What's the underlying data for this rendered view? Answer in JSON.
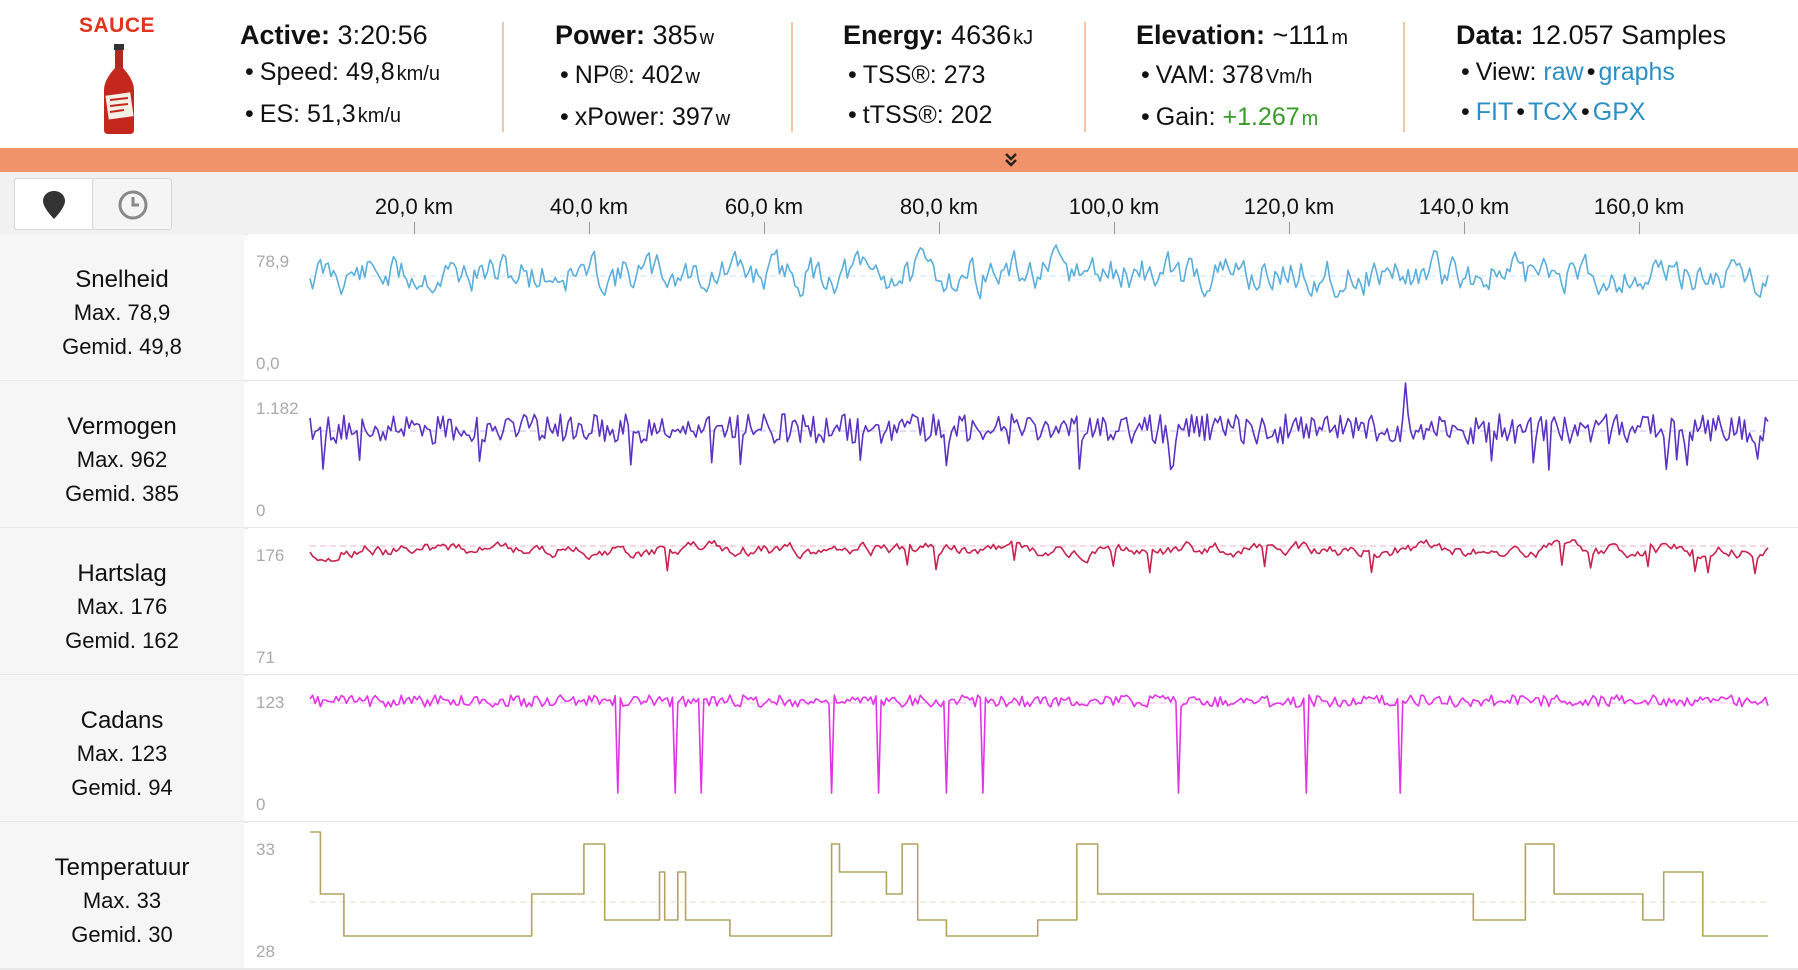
{
  "logo": {
    "text": "SAUCE",
    "icon": "sauce-bottle-icon"
  },
  "header": {
    "active": {
      "label": "Active:",
      "value": "3:20:56",
      "items": [
        {
          "label": "Speed:",
          "value": "49,8",
          "unit": "km/u"
        },
        {
          "label": "ES:",
          "value": "51,3",
          "unit": "km/u"
        }
      ]
    },
    "power": {
      "label": "Power:",
      "value": "385",
      "unit": "w",
      "items": [
        {
          "label": "NP®:",
          "value": "402",
          "unit": "w"
        },
        {
          "label": "xPower:",
          "value": "397",
          "unit": "w"
        }
      ]
    },
    "energy": {
      "label": "Energy:",
      "value": "4636",
      "unit": "kJ",
      "items": [
        {
          "label": "TSS®:",
          "value": "273"
        },
        {
          "label": "tTSS®:",
          "value": "202"
        }
      ]
    },
    "elevation": {
      "label": "Elevation:",
      "value": "~111",
      "unit": "m",
      "items": [
        {
          "label": "VAM:",
          "value": "378",
          "unit": "Vm/h"
        },
        {
          "label": "Gain:",
          "value": "+1.267",
          "unit": "m"
        }
      ]
    },
    "data": {
      "label": "Data:",
      "value": "12.057 Samples",
      "view_label": "View:",
      "view_links": [
        "raw",
        "graphs"
      ],
      "export_links": [
        "FIT",
        "TCX",
        "GPX"
      ]
    }
  },
  "toolbar": {
    "map_icon": "map-pin-icon",
    "time_icon": "clock-icon"
  },
  "axis": {
    "ticks": [
      "20,0 km",
      "40,0 km",
      "60,0 km",
      "80,0 km",
      "100,0 km",
      "120,0 km",
      "140,0 km",
      "160,0 km"
    ]
  },
  "colors": {
    "speed": "#5aaedb",
    "power": "#5b32c2",
    "hr": "#c8234f",
    "cadence": "#e233e6",
    "temp": "#b3a35f",
    "accent": "#f0926a"
  },
  "rows": [
    {
      "name": "Snelheid",
      "max_label": "Max. 78,9",
      "avg_label": "Gemid. 49,8",
      "axis_max": "78,9",
      "axis_min": "0,0"
    },
    {
      "name": "Vermogen",
      "max_label": "Max. 962",
      "avg_label": "Gemid. 385",
      "axis_max": "1.182",
      "axis_min": "0"
    },
    {
      "name": "Hartslag",
      "max_label": "Max. 176",
      "avg_label": "Gemid. 162",
      "axis_max": "176",
      "axis_min": "71"
    },
    {
      "name": "Cadans",
      "max_label": "Max. 123",
      "avg_label": "Gemid. 94",
      "axis_max": "123",
      "axis_min": "0"
    },
    {
      "name": "Temperatuur",
      "max_label": "Max. 33",
      "avg_label": "Gemid. 30",
      "axis_max": "33",
      "axis_min": "28"
    }
  ]
}
